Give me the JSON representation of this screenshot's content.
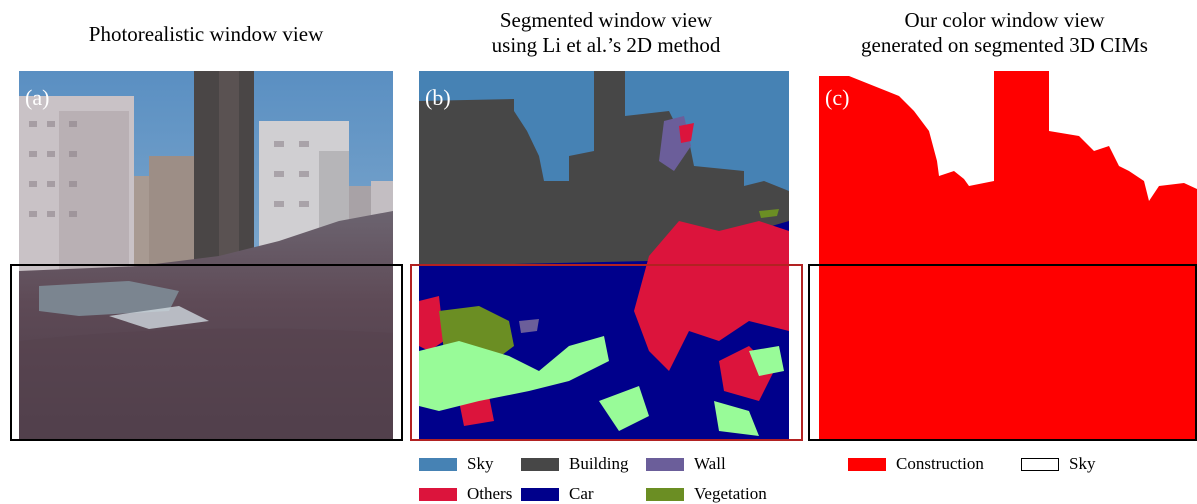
{
  "titles": {
    "a": "Photorealistic window view",
    "b_line1": "Segmented window view",
    "b_line2": "using Li et al.’s 2D method",
    "c_line1": "Our color window view",
    "c_line2": "generated on segmented 3D CIMs"
  },
  "panel_labels": {
    "a": "(a)",
    "b": "(b)",
    "c": "(c)"
  },
  "legend_b": [
    {
      "label": "Sky",
      "color": "#4682b4"
    },
    {
      "label": "Building",
      "color": "#474747"
    },
    {
      "label": "Wall",
      "color": "#6b5e9a"
    },
    {
      "label": "Others",
      "color": "#dc143c"
    },
    {
      "label": "Car",
      "color": "#00008b"
    },
    {
      "label": "Vegetation",
      "color": "#6b8e23"
    }
  ],
  "legend_c": [
    {
      "label": "Construction",
      "color": "#ff0000"
    },
    {
      "label": "Sky",
      "color": "#ffffff"
    }
  ],
  "colors": {
    "frame": "#000000",
    "frame_b": "#b22222",
    "panel_a_sky": "#5a8fc2",
    "panel_a_ground": "#5e4a56",
    "vegetation_light": "#98fb98"
  }
}
